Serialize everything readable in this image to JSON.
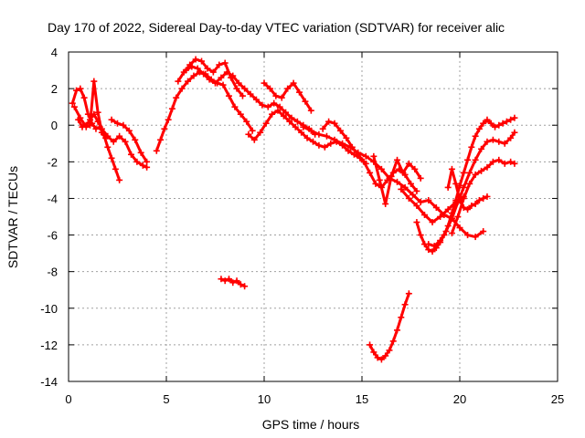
{
  "chart_data": {
    "type": "scatter",
    "title": "Day 170 of 2022, Sidereal Day-to-day VTEC variation (SDTVAR) for receiver alic",
    "xlabel": "GPS time / hours",
    "ylabel": "SDTVAR / TECUs",
    "xlim": [
      0,
      25
    ],
    "ylim": [
      -14,
      4
    ],
    "xticks": [
      0,
      5,
      10,
      15,
      20,
      25
    ],
    "yticks": [
      -14,
      -12,
      -10,
      -8,
      -6,
      -4,
      -2,
      0,
      2,
      4
    ],
    "grid": true,
    "marker_color": "#ff0000",
    "series": [
      {
        "name": "s1",
        "x": [
          0.2,
          0.4,
          0.6,
          0.8,
          1.0,
          1.2,
          1.4,
          1.6,
          1.8,
          2.0,
          2.2,
          2.4,
          2.6
        ],
        "y": [
          1.2,
          1.9,
          2.0,
          1.5,
          0.6,
          0.1,
          -0.2,
          -0.1,
          -0.5,
          -1.2,
          -1.8,
          -2.4,
          -3.0
        ]
      },
      {
        "name": "s2",
        "x": [
          0.5,
          0.7,
          0.9,
          1.1,
          1.3,
          1.5,
          1.7,
          2.0,
          2.3,
          2.6,
          2.9,
          3.2,
          3.5,
          3.8,
          4.0
        ],
        "y": [
          0.3,
          -0.1,
          0.0,
          0.3,
          0.6,
          0.2,
          -0.2,
          -0.6,
          -0.9,
          -0.6,
          -0.9,
          -1.6,
          -2.0,
          -2.2,
          -2.3
        ]
      },
      {
        "name": "s3",
        "x": [
          0.3,
          0.6,
          0.9,
          1.1,
          1.3,
          1.5,
          1.7,
          1.9
        ],
        "y": [
          1.0,
          0.4,
          -0.1,
          0.0,
          2.4,
          0.7,
          -0.4,
          -0.7
        ]
      },
      {
        "name": "s4",
        "x": [
          2.2,
          2.5,
          2.8,
          3.1,
          3.4,
          3.7,
          4.0
        ],
        "y": [
          0.3,
          0.1,
          0.0,
          -0.3,
          -0.8,
          -1.5,
          -2.0
        ]
      },
      {
        "name": "s5",
        "x": [
          4.5,
          4.7,
          4.9,
          5.1,
          5.3,
          5.5,
          5.8,
          6.1,
          6.4,
          6.7,
          7.0,
          7.3,
          7.6,
          7.9,
          8.2,
          8.5,
          8.8,
          9.1,
          9.4
        ],
        "y": [
          -1.4,
          -0.8,
          -0.2,
          0.3,
          0.9,
          1.5,
          2.0,
          2.4,
          2.7,
          2.9,
          2.8,
          2.5,
          2.3,
          2.2,
          1.6,
          1.0,
          0.6,
          0.2,
          -0.3
        ]
      },
      {
        "name": "s6",
        "x": [
          5.6,
          5.9,
          6.2,
          6.5,
          6.8,
          7.1,
          7.4,
          7.7,
          8.0,
          8.3,
          8.6,
          8.9
        ],
        "y": [
          2.4,
          2.9,
          3.3,
          3.6,
          3.5,
          3.1,
          2.9,
          3.3,
          3.4,
          2.6,
          2.0,
          1.6
        ]
      },
      {
        "name": "s7",
        "x": [
          6.0,
          6.3,
          6.6,
          6.9,
          7.2,
          7.5,
          7.8,
          8.1,
          8.4,
          8.7,
          9.0,
          9.3,
          9.6,
          9.9,
          10.2,
          10.5,
          10.8,
          11.1,
          11.4,
          11.7,
          12.0,
          12.3,
          12.6
        ],
        "y": [
          3.0,
          3.2,
          3.1,
          2.8,
          2.5,
          2.3,
          2.6,
          2.9,
          2.7,
          2.3,
          2.0,
          1.7,
          1.4,
          1.1,
          1.0,
          1.2,
          1.0,
          0.7,
          0.4,
          0.2,
          0.0,
          -0.2,
          -0.5
        ]
      },
      {
        "name": "s8",
        "x": [
          9.2,
          9.5,
          9.8,
          10.1,
          10.4,
          10.7,
          11.0,
          11.3,
          11.6,
          11.9,
          12.2,
          12.5,
          12.8,
          13.1,
          13.4,
          13.7,
          14.0,
          14.3,
          14.6,
          14.9,
          15.2
        ],
        "y": [
          -0.5,
          -0.8,
          -0.4,
          0.1,
          0.6,
          0.8,
          0.5,
          0.2,
          -0.1,
          -0.4,
          -0.7,
          -0.9,
          -1.1,
          -1.2,
          -1.0,
          -0.9,
          -1.1,
          -1.4,
          -1.6,
          -1.8,
          -2.1
        ]
      },
      {
        "name": "s9",
        "x": [
          10.0,
          10.3,
          10.6,
          10.9,
          11.2,
          11.5,
          11.8,
          12.1,
          12.4
        ],
        "y": [
          2.3,
          2.0,
          1.6,
          1.5,
          2.0,
          2.3,
          1.8,
          1.3,
          0.8
        ]
      },
      {
        "name": "s10",
        "x": [
          12.0,
          12.4,
          12.8,
          13.2,
          13.6,
          14.0,
          14.4,
          14.8,
          15.2,
          15.6,
          16.0,
          16.4,
          16.8,
          17.2,
          17.6,
          18.0,
          18.4,
          18.8,
          19.2,
          19.6,
          20.0,
          20.4,
          20.8,
          21.2
        ],
        "y": [
          -0.1,
          -0.3,
          -0.5,
          -0.6,
          -0.8,
          -1.0,
          -1.2,
          -1.5,
          -1.7,
          -2.0,
          -2.4,
          -2.9,
          -3.1,
          -3.4,
          -3.8,
          -4.2,
          -4.1,
          -4.5,
          -4.9,
          -5.1,
          -5.6,
          -6.0,
          -6.1,
          -5.8
        ]
      },
      {
        "name": "s11",
        "x": [
          13.0,
          13.3,
          13.6,
          13.9,
          14.2,
          14.5,
          14.8,
          15.1,
          15.4,
          15.7,
          16.0,
          16.3,
          16.6,
          16.9,
          17.2,
          17.5,
          17.8
        ],
        "y": [
          -0.2,
          0.2,
          0.1,
          -0.3,
          -0.7,
          -1.2,
          -1.6,
          -2.0,
          -2.6,
          -3.2,
          -3.4,
          -3.0,
          -2.6,
          -2.4,
          -2.7,
          -3.2,
          -3.6
        ]
      },
      {
        "name": "s12",
        "x": [
          15.6,
          15.9,
          16.2,
          16.5,
          16.8,
          17.1,
          17.4,
          17.7,
          18.0
        ],
        "y": [
          -1.7,
          -3.0,
          -4.3,
          -2.8,
          -1.9,
          -2.6,
          -2.1,
          -2.4,
          -2.9
        ]
      },
      {
        "name": "s13",
        "x": [
          17.0,
          17.4,
          17.8,
          18.2,
          18.6,
          19.0,
          19.4,
          19.8,
          20.2
        ],
        "y": [
          -3.5,
          -4.0,
          -4.4,
          -4.9,
          -5.3,
          -5.0,
          -4.6,
          -4.2,
          -3.9
        ]
      },
      {
        "name": "s14",
        "x": [
          17.8,
          18.0,
          18.2,
          18.4,
          18.6,
          18.8,
          19.0,
          19.2,
          19.4,
          19.6,
          19.8,
          20.0,
          20.2,
          20.4,
          20.6,
          20.8,
          21.0,
          21.2,
          21.4,
          21.6,
          21.8,
          22.0,
          22.2,
          22.4,
          22.6,
          22.8
        ],
        "y": [
          -5.3,
          -6.0,
          -6.5,
          -6.8,
          -6.9,
          -6.7,
          -6.4,
          -6.0,
          -5.5,
          -4.8,
          -4.1,
          -3.3,
          -2.6,
          -1.9,
          -1.2,
          -0.6,
          -0.2,
          0.1,
          0.3,
          0.1,
          -0.1,
          0.0,
          0.1,
          0.2,
          0.3,
          0.4
        ]
      },
      {
        "name": "s15",
        "x": [
          18.4,
          18.7,
          19.0,
          19.3,
          19.6,
          19.9,
          20.2,
          20.5,
          20.8,
          21.1,
          21.4,
          21.7,
          22.0,
          22.3,
          22.6,
          22.8
        ],
        "y": [
          -6.5,
          -6.6,
          -6.3,
          -5.8,
          -5.1,
          -4.2,
          -3.4,
          -2.6,
          -1.9,
          -1.3,
          -0.9,
          -0.8,
          -0.9,
          -1.0,
          -0.7,
          -0.4
        ]
      },
      {
        "name": "s16",
        "x": [
          19.6,
          19.9,
          20.2,
          20.5,
          20.8,
          21.1,
          21.4,
          21.7,
          22.0,
          22.3,
          22.6,
          22.8
        ],
        "y": [
          -5.9,
          -5.0,
          -4.0,
          -3.2,
          -2.7,
          -2.5,
          -2.3,
          -2.0,
          -1.9,
          -2.1,
          -2.0,
          -2.1
        ]
      },
      {
        "name": "s17",
        "x": [
          19.4,
          19.6,
          19.8,
          20.0,
          20.2,
          20.4,
          20.6,
          20.8,
          21.0,
          21.2,
          21.4
        ],
        "y": [
          -3.4,
          -2.4,
          -3.2,
          -4.1,
          -4.5,
          -4.6,
          -4.4,
          -4.3,
          -4.1,
          -4.0,
          -3.9
        ]
      },
      {
        "name": "s18",
        "x": [
          7.8,
          8.0,
          8.2,
          8.4,
          8.6,
          8.8,
          9.0
        ],
        "y": [
          -8.4,
          -8.5,
          -8.4,
          -8.6,
          -8.5,
          -8.7,
          -8.8
        ]
      },
      {
        "name": "s19",
        "x": [
          15.4,
          15.6,
          15.8,
          16.0,
          16.2,
          16.4,
          16.6,
          16.8,
          17.0,
          17.2,
          17.4
        ],
        "y": [
          -12.0,
          -12.4,
          -12.7,
          -12.8,
          -12.6,
          -12.3,
          -11.8,
          -11.2,
          -10.5,
          -9.8,
          -9.2
        ]
      }
    ]
  }
}
